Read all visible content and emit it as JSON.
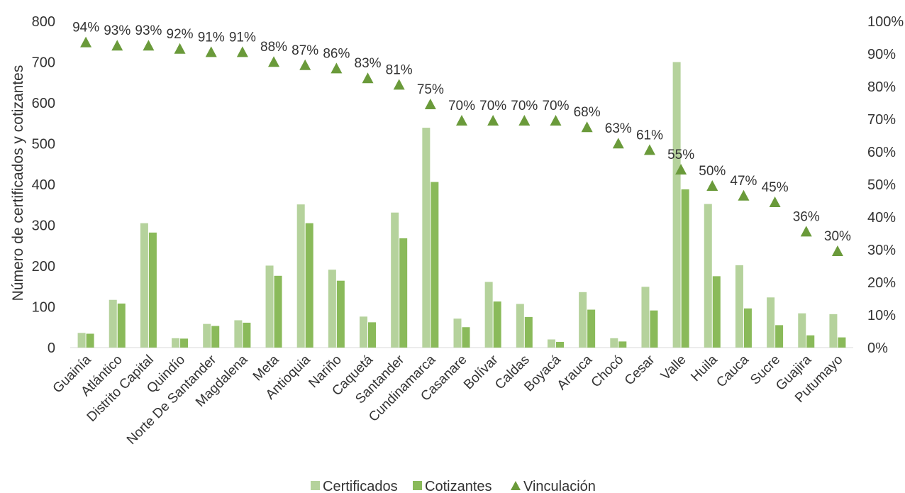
{
  "chart_data": {
    "type": "bar",
    "ylabel": "Número de certificados y cotizantes",
    "ylim": [
      0,
      800
    ],
    "y_ticks": [
      "0",
      "100",
      "200",
      "300",
      "400",
      "500",
      "600",
      "700",
      "800"
    ],
    "y2lim": [
      0,
      1
    ],
    "y2_ticks": [
      "0%",
      "10%",
      "20%",
      "30%",
      "40%",
      "50%",
      "60%",
      "70%",
      "80%",
      "90%",
      "100%"
    ],
    "legend_position": "bottom",
    "categories": [
      "Guainía",
      "Atlántico",
      "Distrito Capital",
      "Quindío",
      "Norte De Santander",
      "Magdalena",
      "Meta",
      "Antioquia",
      "Nariño",
      "Caquetá",
      "Santander",
      "Cundinamarca",
      "Casanare",
      "Bolívar",
      "Caldas",
      "Boyacá",
      "Arauca",
      "Chocó",
      "Cesar",
      "Valle",
      "Huila",
      "Cauca",
      "Sucre",
      "Guajira",
      "Putumayo"
    ],
    "series": [
      {
        "name": "Certificados",
        "type": "bar",
        "color": "#b5d29c",
        "values": [
          36,
          117,
          305,
          23,
          58,
          67,
          201,
          351,
          191,
          76,
          331,
          539,
          71,
          161,
          107,
          20,
          136,
          23,
          149,
          700,
          352,
          202,
          123,
          84,
          82
        ]
      },
      {
        "name": "Cotizantes",
        "type": "bar",
        "color": "#8aba5a",
        "values": [
          34,
          108,
          282,
          22,
          53,
          61,
          176,
          305,
          164,
          62,
          268,
          406,
          50,
          113,
          75,
          14,
          93,
          15,
          91,
          388,
          175,
          96,
          55,
          30,
          25
        ]
      },
      {
        "name": "Vinculación",
        "type": "scatter",
        "marker": "triangle",
        "color": "#6a9a3a",
        "axis": "secondary",
        "values": [
          0.94,
          0.93,
          0.93,
          0.92,
          0.91,
          0.91,
          0.88,
          0.87,
          0.86,
          0.83,
          0.81,
          0.75,
          0.7,
          0.7,
          0.7,
          0.7,
          0.68,
          0.63,
          0.61,
          0.55,
          0.5,
          0.47,
          0.45,
          0.36,
          0.3
        ],
        "labels": [
          "94%",
          "93%",
          "93%",
          "92%",
          "91%",
          "91%",
          "88%",
          "87%",
          "86%",
          "83%",
          "81%",
          "75%",
          "70%",
          "70%",
          "70%",
          "70%",
          "68%",
          "63%",
          "61%",
          "55%",
          "50%",
          "47%",
          "45%",
          "36%",
          "30%"
        ]
      }
    ]
  }
}
